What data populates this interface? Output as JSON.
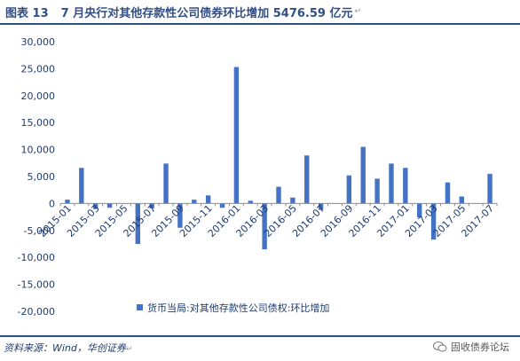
{
  "header": {
    "figure_no": "图表 13",
    "title": "7 月央行对其他存款性公司债券环比增加 5476.59 亿元",
    "mark": "↵"
  },
  "footer": {
    "source": "资料来源：Wind，华创证券",
    "mark": "↵"
  },
  "watermark": {
    "text": "固收债券论坛",
    "icon": "wechat-icon"
  },
  "chart_data": {
    "type": "bar",
    "title": "",
    "xlabel": "",
    "ylabel": "",
    "ylim": [
      -20000,
      30000
    ],
    "yticks": [
      30000,
      25000,
      20000,
      15000,
      10000,
      5000,
      0,
      -5000,
      -10000,
      -15000,
      -20000
    ],
    "ytick_labels": [
      "30,000",
      "25,000",
      "20,000",
      "15,000",
      "10,000",
      "5,000",
      "0",
      "-5,000",
      "-10,000",
      "-15,000",
      "-20,000"
    ],
    "grid": false,
    "legend_position": "bottom",
    "bar_color": "#4472c4",
    "categories": [
      "2015-01",
      "2015-02",
      "2015-03",
      "2015-04",
      "2015-05",
      "2015-06",
      "2015-07",
      "2015-08",
      "2015-09",
      "2015-10",
      "2015-11",
      "2015-12",
      "2016-01",
      "2016-02",
      "2016-03",
      "2016-04",
      "2016-05",
      "2016-06",
      "2016-07",
      "2016-08",
      "2016-09",
      "2016-10",
      "2016-11",
      "2016-12",
      "2017-01",
      "2017-02",
      "2017-03",
      "2017-04",
      "2017-05",
      "2017-06",
      "2017-07"
    ],
    "shown_tick_labels": [
      "2015-01",
      "2015-03",
      "2015-05",
      "2015-07",
      "2015-09",
      "2015-11",
      "2016-01",
      "2016-03",
      "2016-05",
      "2016-07",
      "2016-09",
      "2016-11",
      "2017-01",
      "2017-03",
      "2017-05",
      "2017-07"
    ],
    "series": [
      {
        "name": "货币当局:对其他存款性公司债权:环比增加",
        "values": [
          700,
          6600,
          -1000,
          -800,
          0,
          -7500,
          -900,
          7400,
          -4500,
          700,
          1500,
          -800,
          25300,
          500,
          -8500,
          3100,
          1100,
          8900,
          -1200,
          0,
          5200,
          10500,
          4600,
          7400,
          6600,
          -2600,
          -6700,
          3900,
          1300,
          0,
          5477
        ]
      }
    ]
  }
}
